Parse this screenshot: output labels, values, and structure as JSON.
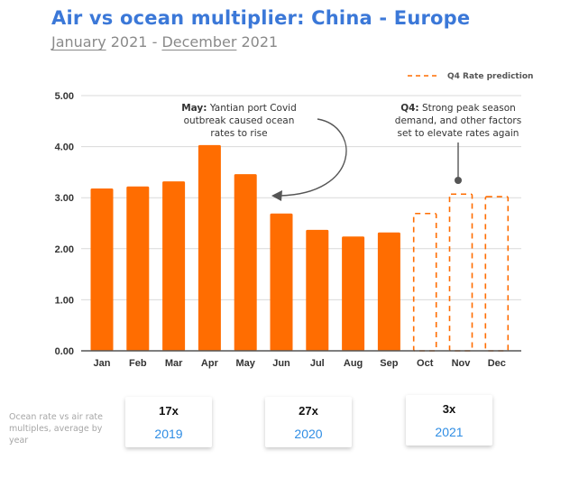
{
  "header": {
    "title": "Air vs ocean multiplier: China - Europe",
    "subtitle_start_month": "January",
    "subtitle_start_year": "2021",
    "subtitle_separator": "-",
    "subtitle_end_month": "December",
    "subtitle_end_year": "2021"
  },
  "chart_data": {
    "type": "bar",
    "title": "Air vs ocean multiplier: China - Europe",
    "xlabel": "",
    "ylabel": "",
    "ylim": [
      0,
      5
    ],
    "yticks": [
      "0.00",
      "1.00",
      "2.00",
      "3.00",
      "4.00",
      "5.00"
    ],
    "grid": true,
    "categories": [
      "Jan",
      "Feb",
      "Mar",
      "Apr",
      "May",
      "Jun",
      "Jul",
      "Aug",
      "Sep",
      "Oct",
      "Nov",
      "Dec"
    ],
    "values": [
      3.18,
      3.22,
      3.32,
      4.03,
      3.46,
      2.69,
      2.37,
      2.24,
      2.32,
      2.69,
      3.07,
      3.02
    ],
    "predicted": [
      false,
      false,
      false,
      false,
      false,
      false,
      false,
      false,
      false,
      true,
      true,
      true
    ],
    "legend": [
      {
        "label": "Q4 Rate prediction",
        "style": "dashed",
        "position": "top-right"
      }
    ],
    "colors": {
      "bar": "#ff6d01",
      "prediction": "#ff6d01",
      "grid": "#d9d9d9",
      "axis": "#555555",
      "annotation_line": "#555555"
    },
    "annotations": [
      {
        "bold": "May:",
        "lines": [
          "Yantian port Covid",
          "outbreak caused ocean",
          "rates to rise"
        ],
        "target": "May"
      },
      {
        "bold": "Q4:",
        "lines": [
          "Strong peak season",
          "demand, and other factors",
          "set to elevate rates again"
        ],
        "target": "Nov"
      }
    ]
  },
  "summary": {
    "note": "Ocean rate vs air rate multiples, average by year",
    "cards": [
      {
        "multiple": "17x",
        "year": "2019"
      },
      {
        "multiple": "27x",
        "year": "2020"
      },
      {
        "multiple": "3x",
        "year": "2021"
      }
    ]
  }
}
